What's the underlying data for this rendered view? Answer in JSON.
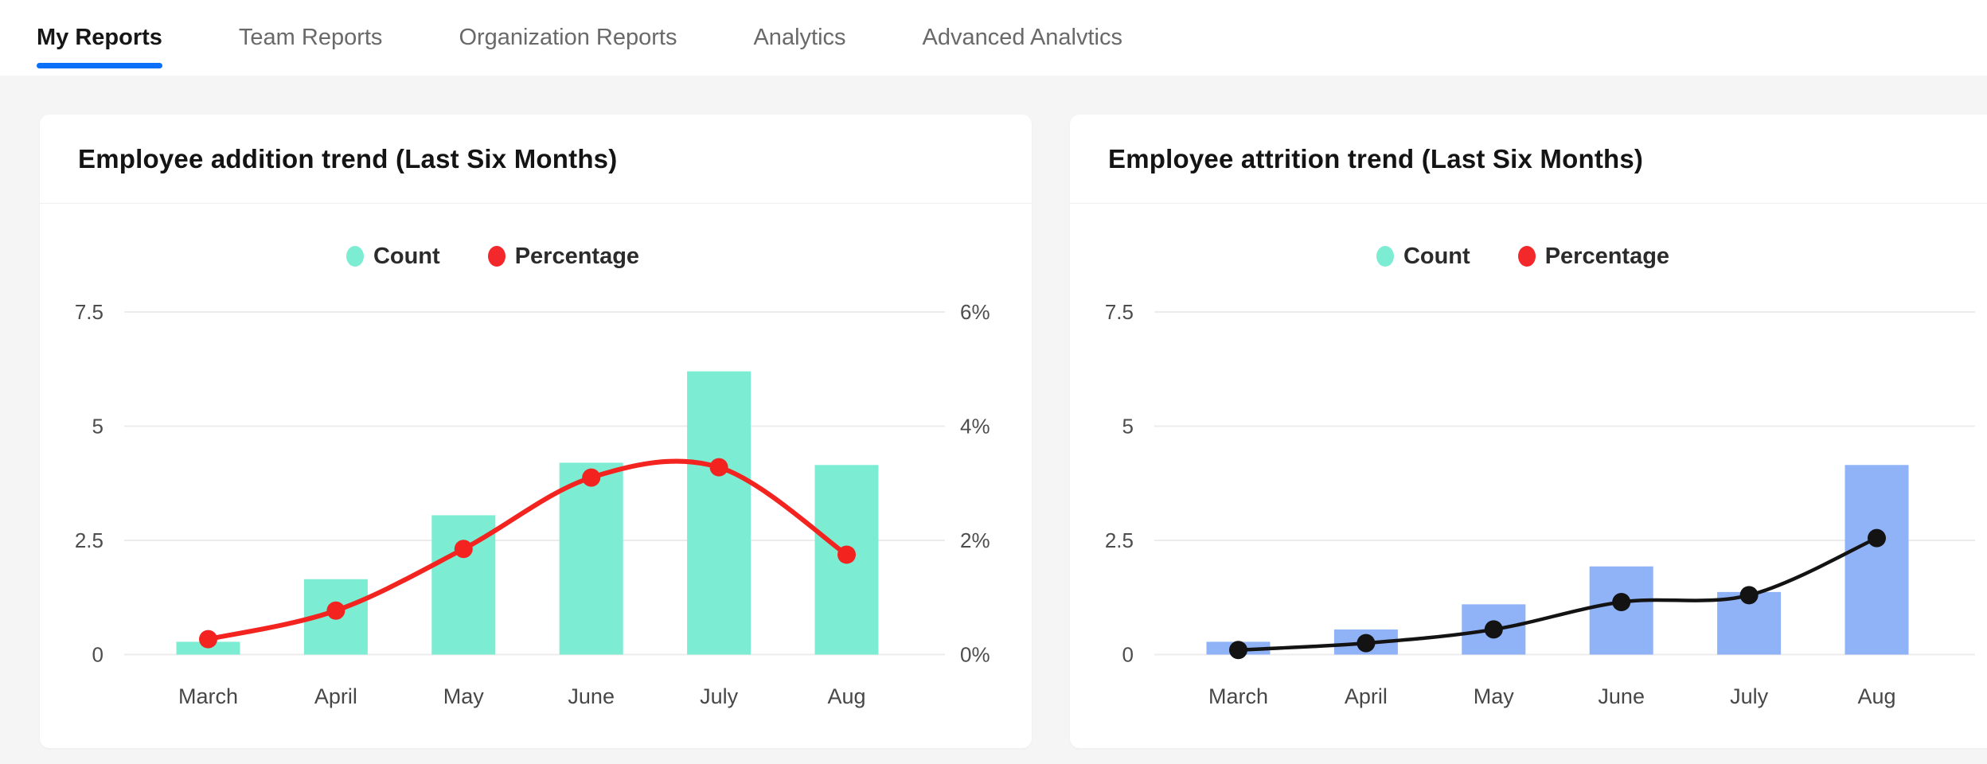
{
  "tab_bar": {
    "tabs": [
      {
        "label": "My Reports",
        "active": true
      },
      {
        "label": "Team Reports",
        "active": false
      },
      {
        "label": "Organization Reports",
        "active": false
      },
      {
        "label": "Analytics",
        "active": false
      },
      {
        "label": "Advanced Analvtics",
        "active": false
      }
    ]
  },
  "theme": {
    "page_bg": "#F5F5F5",
    "card_bg": "#FFFFFF",
    "divider": "#EFEFEF",
    "grid_color": "#ECECEC",
    "tick_color": "#4D4D4D",
    "month_color": "#474747",
    "title_color": "#141414",
    "tab_inactive": "#696969",
    "tab_active": "#161616",
    "active_underline": "#0D70F8",
    "legend_text": "#2B2B2B"
  },
  "cards": [
    {
      "title": "Employee addition trend (Last Six Months)",
      "legend": [
        {
          "label": "Count",
          "color": "#7CEDD3"
        },
        {
          "label": "Percentage",
          "color": "#F2282A"
        }
      ],
      "chart_data": {
        "type": "bar+line",
        "categories": [
          "March",
          "April",
          "May",
          "June",
          "July",
          "Aug"
        ],
        "series": [
          {
            "name": "Count",
            "type": "bar",
            "axis": "left",
            "color": "#7CEDD3",
            "values": [
              0.28,
              1.65,
              3.05,
              4.2,
              6.2,
              4.15
            ]
          },
          {
            "name": "Percentage",
            "type": "line",
            "axis": "right",
            "color": "#F3231F",
            "line_width": 6,
            "dot_radius": 11.5,
            "values": [
              0.27,
              0.77,
              1.85,
              3.1,
              3.28,
              1.75
            ]
          }
        ],
        "left_axis": {
          "ylim": [
            0,
            7.5
          ],
          "ticks": [
            {
              "value": 0,
              "label": "0"
            },
            {
              "value": 2.5,
              "label": "2.5"
            },
            {
              "value": 5,
              "label": "5"
            },
            {
              "value": 7.5,
              "label": "7.5"
            }
          ]
        },
        "right_axis": {
          "ylim": [
            0,
            6
          ],
          "ticks": [
            {
              "value": 0,
              "label": "0%"
            },
            {
              "value": 2,
              "label": "2%"
            },
            {
              "value": 4,
              "label": "4%"
            },
            {
              "value": 6,
              "label": "6%"
            }
          ]
        },
        "grid": true,
        "legend_position": "top-center"
      }
    },
    {
      "title": "Employee attrition trend (Last Six Months)",
      "legend": [
        {
          "label": "Count",
          "color": "#7CEDD3"
        },
        {
          "label": "Percentage",
          "color": "#F2282A"
        }
      ],
      "chart_data": {
        "type": "bar+line",
        "categories": [
          "March",
          "April",
          "May",
          "June",
          "July",
          "Aug"
        ],
        "series": [
          {
            "name": "Count",
            "type": "bar",
            "axis": "left",
            "color": "#90B2F6",
            "values": [
              0.28,
              0.55,
              1.1,
              1.93,
              1.37,
              4.15
            ]
          },
          {
            "name": "Percentage",
            "type": "line",
            "axis": "left",
            "color": "#131313",
            "line_width": 4.5,
            "dot_radius": 11.5,
            "values": [
              0.1,
              0.25,
              0.55,
              1.15,
              1.3,
              2.55
            ]
          }
        ],
        "left_axis": {
          "ylim": [
            0,
            7.5
          ],
          "ticks": [
            {
              "value": 0,
              "label": "0"
            },
            {
              "value": 2.5,
              "label": "2.5"
            },
            {
              "value": 5,
              "label": "5"
            },
            {
              "value": 7.5,
              "label": "7.5"
            }
          ]
        },
        "right_axis": null,
        "note": "right percentage axis labels cut off at screenshot edge",
        "grid": true,
        "legend_position": "top-center"
      }
    }
  ]
}
